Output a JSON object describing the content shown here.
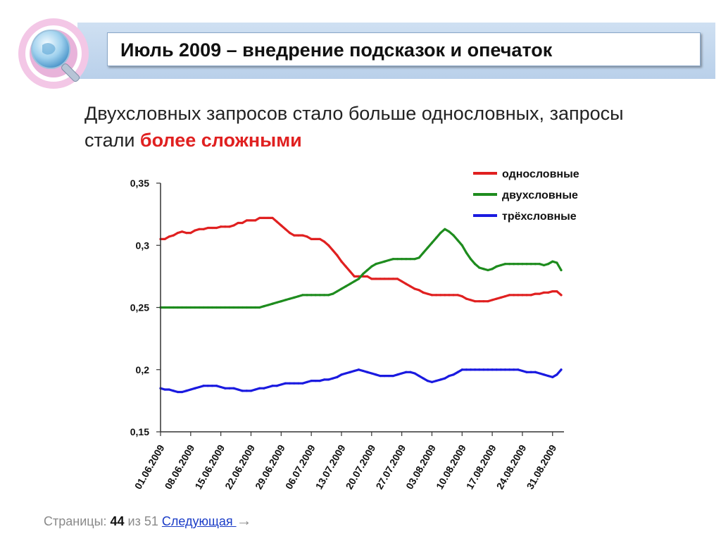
{
  "title": "Июль 2009 – внедрение подсказок и опечаток",
  "subtitle": {
    "text": "Двухсловных запросов стало больше однословных, запросы стали ",
    "accent": "более сложными"
  },
  "colors": {
    "one_word": "#e02020",
    "two_word": "#1e8c1e",
    "three_word": "#1a1ae0",
    "accent": "#e02020"
  },
  "footer": {
    "label": "Страницы: ",
    "current": "44",
    "of": " из 51 ",
    "next": "Следующая ",
    "arrow": "→"
  },
  "chart_data": {
    "type": "line",
    "title": "",
    "xlabel": "",
    "ylabel": "",
    "ylim": [
      0.15,
      0.35
    ],
    "y_ticks": [
      "0,15",
      "0,2",
      "0,25",
      "0,3",
      "0,35"
    ],
    "x_tick_labels": [
      "01.06.2009",
      "08.06.2009",
      "15.06.2009",
      "22.06.2009",
      "29.06.2009",
      "06.07.2009",
      "13.07.2009",
      "20.07.2009",
      "27.07.2009",
      "03.08.2009",
      "10.08.2009",
      "17.08.2009",
      "24.08.2009",
      "31.08.2009"
    ],
    "x_days_start": "01.06.2009",
    "legend_position": "top-right",
    "grid": false,
    "series": [
      {
        "name": "однословные",
        "values": [
          0.305,
          0.305,
          0.307,
          0.308,
          0.31,
          0.311,
          0.31,
          0.31,
          0.312,
          0.313,
          0.313,
          0.314,
          0.314,
          0.314,
          0.315,
          0.315,
          0.315,
          0.316,
          0.318,
          0.318,
          0.32,
          0.32,
          0.32,
          0.322,
          0.322,
          0.322,
          0.322,
          0.319,
          0.316,
          0.313,
          0.31,
          0.308,
          0.308,
          0.308,
          0.307,
          0.305,
          0.305,
          0.305,
          0.303,
          0.3,
          0.296,
          0.292,
          0.287,
          0.283,
          0.279,
          0.275,
          0.275,
          0.275,
          0.275,
          0.273,
          0.273,
          0.273,
          0.273,
          0.273,
          0.273,
          0.273,
          0.271,
          0.269,
          0.267,
          0.265,
          0.264,
          0.262,
          0.261,
          0.26,
          0.26,
          0.26,
          0.26,
          0.26,
          0.26,
          0.26,
          0.259,
          0.257,
          0.256,
          0.255,
          0.255,
          0.255,
          0.255,
          0.256,
          0.257,
          0.258,
          0.259,
          0.26,
          0.26,
          0.26,
          0.26,
          0.26,
          0.26,
          0.261,
          0.261,
          0.262,
          0.262,
          0.263,
          0.263,
          0.26
        ]
      },
      {
        "name": "двухсловные",
        "values": [
          0.25,
          0.25,
          0.25,
          0.25,
          0.25,
          0.25,
          0.25,
          0.25,
          0.25,
          0.25,
          0.25,
          0.25,
          0.25,
          0.25,
          0.25,
          0.25,
          0.25,
          0.25,
          0.25,
          0.25,
          0.25,
          0.25,
          0.25,
          0.25,
          0.251,
          0.252,
          0.253,
          0.254,
          0.255,
          0.256,
          0.257,
          0.258,
          0.259,
          0.26,
          0.26,
          0.26,
          0.26,
          0.26,
          0.26,
          0.26,
          0.261,
          0.263,
          0.265,
          0.267,
          0.269,
          0.271,
          0.273,
          0.277,
          0.28,
          0.283,
          0.285,
          0.286,
          0.287,
          0.288,
          0.289,
          0.289,
          0.289,
          0.289,
          0.289,
          0.289,
          0.29,
          0.294,
          0.298,
          0.302,
          0.306,
          0.31,
          0.313,
          0.311,
          0.308,
          0.304,
          0.3,
          0.294,
          0.289,
          0.285,
          0.282,
          0.281,
          0.28,
          0.281,
          0.283,
          0.284,
          0.285,
          0.285,
          0.285,
          0.285,
          0.285,
          0.285,
          0.285,
          0.285,
          0.285,
          0.284,
          0.285,
          0.287,
          0.286,
          0.28
        ]
      },
      {
        "name": "трёхсловные",
        "values": [
          0.185,
          0.184,
          0.184,
          0.183,
          0.182,
          0.182,
          0.183,
          0.184,
          0.185,
          0.186,
          0.187,
          0.187,
          0.187,
          0.187,
          0.186,
          0.185,
          0.185,
          0.185,
          0.184,
          0.183,
          0.183,
          0.183,
          0.184,
          0.185,
          0.185,
          0.186,
          0.187,
          0.187,
          0.188,
          0.189,
          0.189,
          0.189,
          0.189,
          0.189,
          0.19,
          0.191,
          0.191,
          0.191,
          0.192,
          0.192,
          0.193,
          0.194,
          0.196,
          0.197,
          0.198,
          0.199,
          0.2,
          0.199,
          0.198,
          0.197,
          0.196,
          0.195,
          0.195,
          0.195,
          0.195,
          0.196,
          0.197,
          0.198,
          0.198,
          0.197,
          0.195,
          0.193,
          0.191,
          0.19,
          0.191,
          0.192,
          0.193,
          0.195,
          0.196,
          0.198,
          0.2,
          0.2,
          0.2,
          0.2,
          0.2,
          0.2,
          0.2,
          0.2,
          0.2,
          0.2,
          0.2,
          0.2,
          0.2,
          0.2,
          0.199,
          0.198,
          0.198,
          0.198,
          0.197,
          0.196,
          0.195,
          0.194,
          0.196,
          0.2
        ]
      }
    ]
  }
}
